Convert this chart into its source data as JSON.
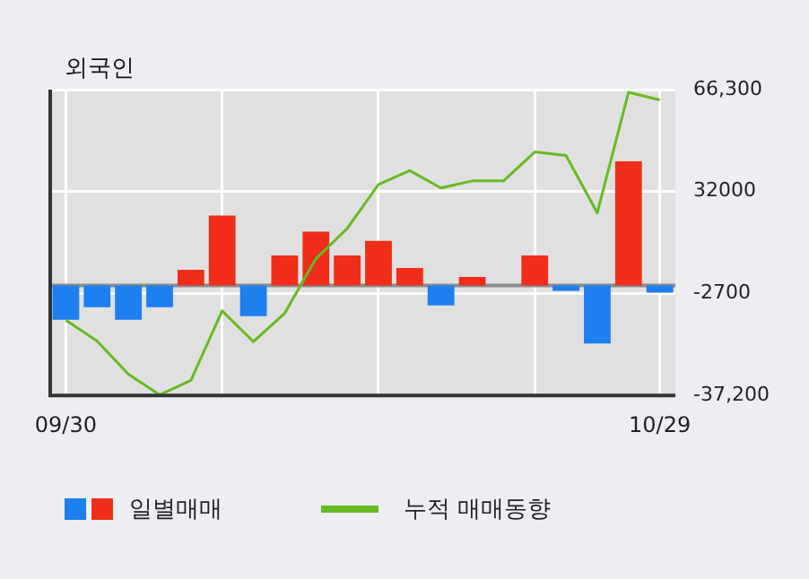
{
  "chart_data": {
    "type": "bar",
    "title": "외국인",
    "categories": [
      "09/30",
      null,
      null,
      null,
      null,
      null,
      null,
      null,
      null,
      null,
      null,
      null,
      null,
      null,
      null,
      null,
      null,
      null,
      null,
      "10/29"
    ],
    "series": [
      {
        "name": "일별매매",
        "colors": [
          "#1e7ff0",
          "#1e7ff0",
          "#1e7ff0",
          "#1e7ff0",
          "#f02d1a",
          "#f02d1a",
          "#1e7ff0",
          "#f02d1a",
          "#f02d1a",
          "#f02d1a",
          "#f02d1a",
          "#f02d1a",
          "#1e7ff0",
          "#f02d1a",
          "#f02d1a",
          "#f02d1a",
          "#1e7ff0",
          "#1e7ff0",
          "#f02d1a",
          "#1e7ff0"
        ],
        "values": [
          -11600,
          -7300,
          -11600,
          -7300,
          5300,
          23700,
          -10400,
          10200,
          18200,
          10200,
          15100,
          5900,
          -6700,
          2900,
          0,
          10200,
          -1800,
          -19600,
          42000,
          -2400
        ]
      },
      {
        "name": "누적 매매동향",
        "type": "line",
        "color": "#66bb22",
        "values": [
          -11700,
          -18800,
          -30000,
          -37000,
          -32100,
          -8600,
          -19000,
          -9400,
          9100,
          19300,
          34200,
          38900,
          33000,
          35400,
          35400,
          45200,
          44000,
          24600,
          65400,
          62800
        ]
      }
    ],
    "ylim": [
      -37200,
      66300
    ],
    "yticks": [
      {
        "value": 66300,
        "label": "66,300"
      },
      {
        "value": 32000,
        "label": "32000"
      },
      {
        "value": -2700,
        "label": "-2700"
      },
      {
        "value": -37200,
        "label": "-37,200"
      }
    ],
    "ref_lines": [
      {
        "axis": "y",
        "value": 0,
        "color": "#8c8c8c"
      }
    ],
    "grid": true,
    "legend": "bottom",
    "marker": "none",
    "line_style": "solid"
  }
}
